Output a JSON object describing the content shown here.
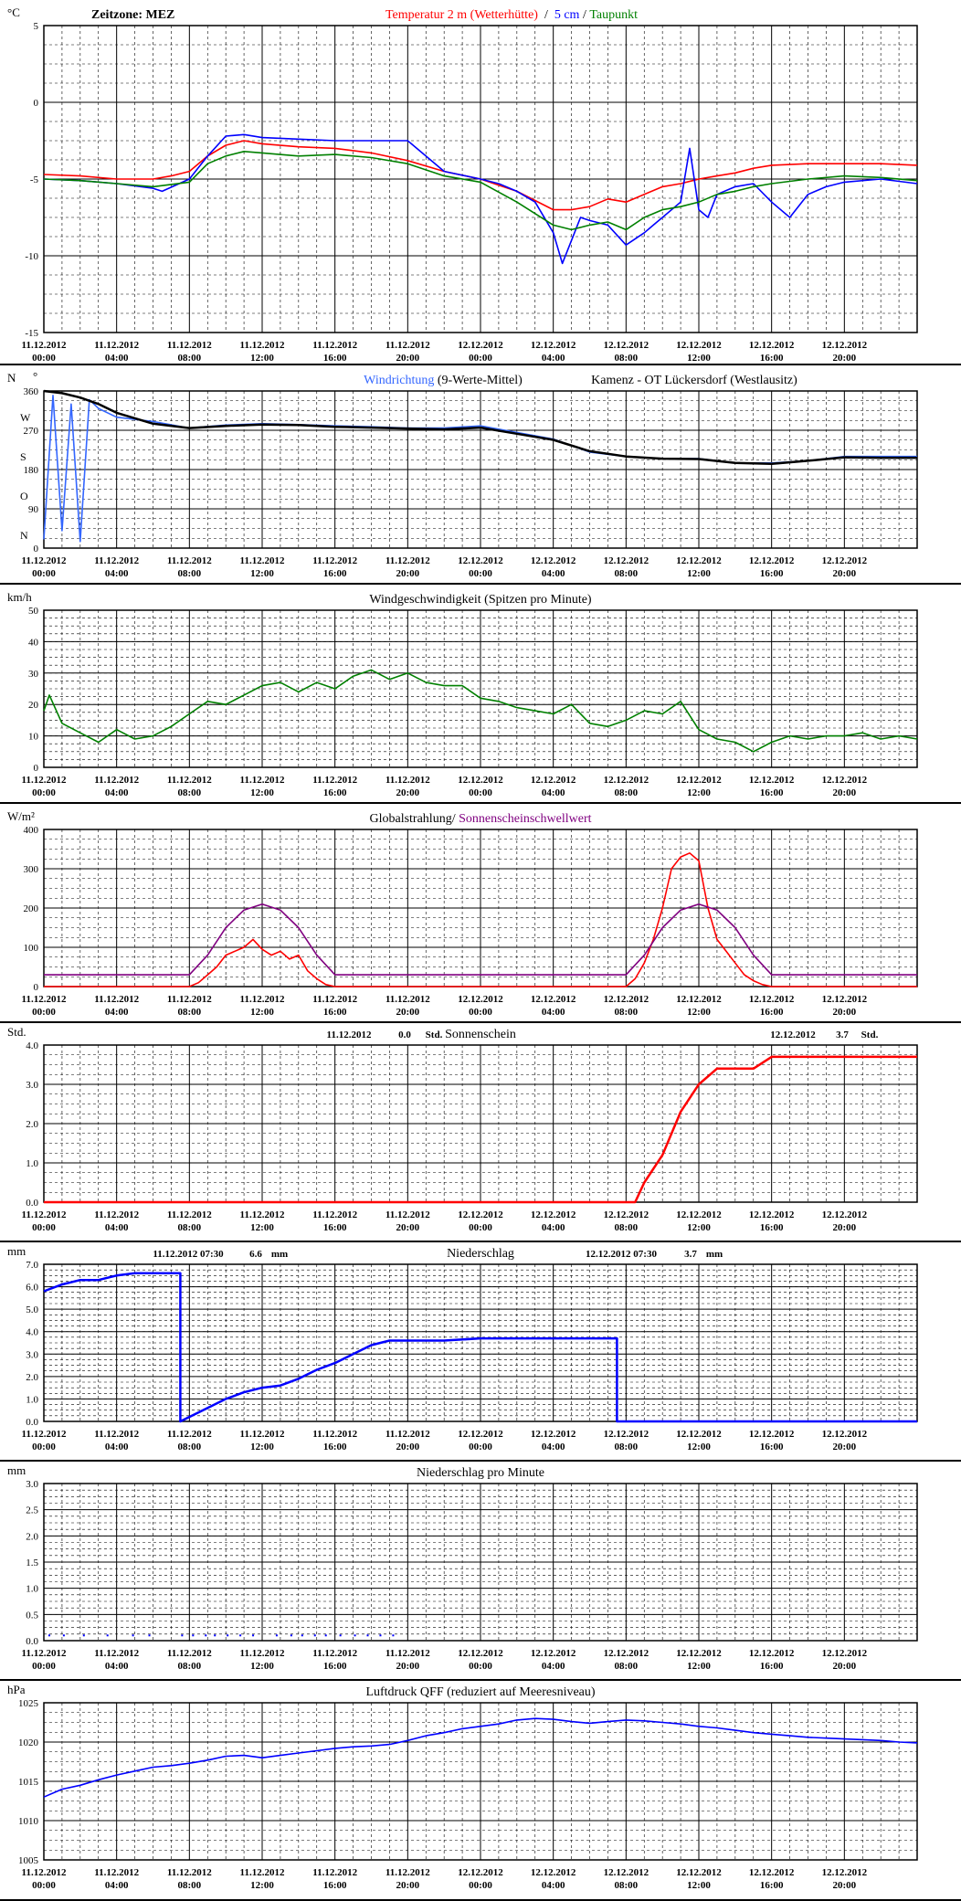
{
  "colors": {
    "temp2m": "#ff0000",
    "temp5cm": "#0000ff",
    "dewpoint": "#008000",
    "winddir_raw": "#3366ff",
    "winddir_avg": "#000000",
    "windspeed": "#008000",
    "radiation": "#ff0000",
    "sun_threshold": "#800080",
    "sunshine": "#ff0000",
    "precip": "#0000ff",
    "precip_minute": "#0000ff",
    "pressure": "#0000ff",
    "grid_major": "#000000",
    "grid_minor": "#000000"
  },
  "time_ticks": [
    "11.12.2012",
    "11.12.2012",
    "11.12.2012",
    "11.12.2012",
    "11.12.2012",
    "11.12.2012",
    "12.12.2012",
    "12.12.2012",
    "12.12.2012",
    "12.12.2012",
    "12.12.2012",
    "12.12.2012"
  ],
  "time_ticks_hour": [
    "00:00",
    "04:00",
    "08:00",
    "12:00",
    "16:00",
    "20:00",
    "00:00",
    "04:00",
    "08:00",
    "12:00",
    "16:00",
    "20:00"
  ],
  "chart_data": [
    {
      "id": "temp",
      "type": "line",
      "unit": "°C",
      "title_left": "Zeitzone: MEZ",
      "title_parts": [
        {
          "text": "Temperatur 2 m (Wetterhütte)",
          "color": "#ff0000"
        },
        {
          "text": "  /  ",
          "color": "#000000"
        },
        {
          "text": "5 cm",
          "color": "#0000ff"
        },
        {
          "text": " / ",
          "color": "#000000"
        },
        {
          "text": "Taupunkt",
          "color": "#008000"
        }
      ],
      "ylim": [
        -15,
        5
      ],
      "yticks": [
        5,
        0,
        -5,
        -10,
        -15
      ],
      "xlim": [
        0,
        48
      ],
      "series": [
        {
          "name": "Temperatur 2 m (Wetterhütte)",
          "color": "#ff0000",
          "x": [
            0,
            2,
            4,
            6,
            7,
            8,
            9,
            10,
            11,
            12,
            14,
            16,
            18,
            20,
            22,
            24,
            26,
            28,
            29,
            30,
            31,
            32,
            33,
            34,
            35,
            36,
            37,
            38,
            39,
            40,
            42,
            44,
            46,
            48
          ],
          "y": [
            -4.7,
            -4.8,
            -5.0,
            -5.0,
            -4.8,
            -4.5,
            -3.5,
            -2.8,
            -2.5,
            -2.7,
            -2.9,
            -3.0,
            -3.3,
            -3.8,
            -4.5,
            -5.0,
            -5.8,
            -7.0,
            -7.0,
            -6.8,
            -6.3,
            -6.5,
            -6.0,
            -5.5,
            -5.3,
            -5.0,
            -4.8,
            -4.6,
            -4.3,
            -4.1,
            -4.0,
            -4.0,
            -4.0,
            -4.1
          ]
        },
        {
          "name": "5 cm",
          "color": "#0000ff",
          "x": [
            0,
            2,
            4,
            6,
            6.5,
            8,
            9,
            10,
            11,
            12,
            14,
            16,
            18,
            20,
            22,
            24,
            25,
            26,
            27,
            28,
            28.5,
            29,
            29.5,
            30,
            31,
            32,
            33,
            33.5,
            34,
            35,
            35.5,
            36,
            36.5,
            37,
            38,
            39,
            40,
            41,
            42,
            43,
            44,
            46,
            48
          ],
          "y": [
            -5.0,
            -5.1,
            -5.3,
            -5.6,
            -5.8,
            -5.0,
            -3.5,
            -2.2,
            -2.1,
            -2.3,
            -2.4,
            -2.5,
            -2.5,
            -2.5,
            -4.5,
            -5.0,
            -5.3,
            -5.8,
            -6.5,
            -8.5,
            -10.5,
            -9.0,
            -7.5,
            -7.7,
            -8.0,
            -9.3,
            -8.5,
            -8.0,
            -7.5,
            -6.5,
            -3.0,
            -7.0,
            -7.5,
            -6.0,
            -5.5,
            -5.3,
            -6.5,
            -7.5,
            -6.0,
            -5.5,
            -5.2,
            -5.0,
            -5.3
          ]
        },
        {
          "name": "Taupunkt",
          "color": "#008000",
          "x": [
            0,
            2,
            4,
            6,
            8,
            9,
            10,
            11,
            12,
            14,
            16,
            18,
            20,
            22,
            24,
            26,
            28,
            29,
            30,
            31,
            32,
            33,
            34,
            35,
            36,
            37,
            38,
            39,
            40,
            42,
            44,
            46,
            48
          ],
          "y": [
            -5.0,
            -5.1,
            -5.3,
            -5.5,
            -5.2,
            -4.0,
            -3.5,
            -3.2,
            -3.3,
            -3.5,
            -3.4,
            -3.6,
            -4.0,
            -4.8,
            -5.2,
            -6.5,
            -8.0,
            -8.3,
            -8.0,
            -7.8,
            -8.3,
            -7.5,
            -7.0,
            -6.8,
            -6.5,
            -6.0,
            -5.8,
            -5.5,
            -5.3,
            -5.0,
            -4.8,
            -4.9,
            -5.1
          ]
        }
      ]
    },
    {
      "id": "winddir",
      "type": "line",
      "unit": "N",
      "unit2": "°",
      "title_parts": [
        {
          "text": "Windrichtung",
          "color": "#3366ff"
        },
        {
          "text": " (9-Werte-Mittel)",
          "color": "#000000"
        }
      ],
      "title_right": "Kamenz - OT Lückersdorf (Westlausitz)",
      "ylim": [
        0,
        360
      ],
      "yticks": [
        360,
        270,
        180,
        90,
        0
      ],
      "ylabels_compass": [
        "N",
        "W",
        "S",
        "O",
        "N"
      ],
      "xlim": [
        0,
        48
      ],
      "series": [
        {
          "name": "Windrichtung",
          "color": "#3366ff",
          "x": [
            0,
            0.5,
            1,
            1.5,
            2,
            2.5,
            3,
            4,
            6,
            8,
            10,
            12,
            14,
            16,
            18,
            20,
            22,
            24,
            26,
            28,
            30,
            32,
            34,
            36,
            38,
            40,
            42,
            44,
            46,
            48
          ],
          "y": [
            20,
            350,
            40,
            330,
            15,
            340,
            320,
            300,
            290,
            275,
            282,
            285,
            283,
            280,
            278,
            275,
            275,
            280,
            265,
            250,
            220,
            210,
            205,
            205,
            195,
            195,
            200,
            210,
            210,
            210
          ]
        },
        {
          "name": "9-Werte-Mittel",
          "color": "#000000",
          "x": [
            0,
            1,
            2,
            3,
            4,
            6,
            8,
            10,
            12,
            14,
            16,
            18,
            20,
            22,
            24,
            26,
            28,
            30,
            32,
            34,
            36,
            38,
            40,
            42,
            44,
            46,
            48
          ],
          "y": [
            360,
            355,
            345,
            330,
            310,
            285,
            275,
            280,
            283,
            282,
            278,
            276,
            274,
            272,
            276,
            262,
            248,
            222,
            210,
            205,
            204,
            195,
            193,
            200,
            208,
            207,
            207
          ]
        }
      ]
    },
    {
      "id": "windspeed",
      "type": "line",
      "unit": "km/h",
      "title": "Windgeschwindigkeit (Spitzen pro Minute)",
      "ylim": [
        0,
        50
      ],
      "yticks": [
        50,
        40,
        30,
        20,
        10,
        0
      ],
      "xlim": [
        0,
        48
      ],
      "series": [
        {
          "name": "Windgeschwindigkeit",
          "color": "#008000",
          "x": [
            0,
            0.3,
            1,
            2,
            3,
            4,
            5,
            6,
            7,
            8,
            9,
            10,
            11,
            12,
            13,
            14,
            15,
            16,
            17,
            18,
            19,
            20,
            21,
            22,
            23,
            24,
            25,
            26,
            27,
            28,
            29,
            30,
            31,
            32,
            33,
            34,
            35,
            36,
            37,
            38,
            39,
            40,
            41,
            42,
            43,
            44,
            45,
            46,
            47,
            48
          ],
          "y": [
            18,
            23,
            14,
            11,
            8,
            12,
            9,
            10,
            13,
            17,
            21,
            20,
            23,
            26,
            27,
            24,
            27,
            25,
            29,
            31,
            28,
            30,
            27,
            26,
            26,
            22,
            21,
            19,
            18,
            17,
            20,
            14,
            13,
            15,
            18,
            17,
            21,
            12,
            9,
            8,
            5,
            8,
            10,
            9,
            10,
            10,
            11,
            9,
            10,
            9
          ]
        }
      ]
    },
    {
      "id": "radiation",
      "type": "line",
      "unit": "W/m²",
      "title_parts": [
        {
          "text": "Globalstrahlung/ ",
          "color": "#000000"
        },
        {
          "text": "Sonnenscheinschwellwert",
          "color": "#800080"
        }
      ],
      "ylim": [
        0,
        400
      ],
      "yticks": [
        400,
        300,
        200,
        100,
        0
      ],
      "xlim": [
        0,
        48
      ],
      "series": [
        {
          "name": "Globalstrahlung",
          "color": "#ff0000",
          "x": [
            0,
            8,
            8.5,
            9,
            9.5,
            10,
            10.5,
            11,
            11.5,
            12,
            12.5,
            13,
            13.5,
            14,
            14.5,
            15,
            15.5,
            16,
            32,
            32.5,
            33,
            33.5,
            34,
            34.5,
            35,
            35.5,
            36,
            36.5,
            37,
            37.5,
            38,
            38.5,
            39,
            39.5,
            40,
            48
          ],
          "y": [
            0,
            0,
            10,
            30,
            50,
            80,
            90,
            100,
            120,
            95,
            80,
            90,
            70,
            80,
            40,
            20,
            5,
            0,
            0,
            20,
            60,
            120,
            200,
            300,
            330,
            340,
            320,
            200,
            120,
            90,
            60,
            30,
            15,
            5,
            0,
            0
          ]
        },
        {
          "name": "Sonnenscheinschwellwert",
          "color": "#800080",
          "x": [
            0,
            7.5,
            8,
            9,
            10,
            11,
            12,
            13,
            14,
            15,
            16,
            16.5,
            31.5,
            32,
            33,
            34,
            35,
            36,
            37,
            38,
            39,
            40,
            40.5,
            48
          ],
          "y": [
            30,
            30,
            30,
            80,
            150,
            195,
            210,
            195,
            150,
            80,
            30,
            30,
            30,
            30,
            80,
            150,
            195,
            210,
            195,
            150,
            80,
            30,
            30,
            30
          ]
        }
      ]
    },
    {
      "id": "sunshine",
      "type": "line",
      "unit": "Std.",
      "title": "Sonnenschein",
      "label_day1": "11.12.2012",
      "value_day1": "0.0",
      "unit_day1": "Std.",
      "label_day2": "12.12.2012",
      "value_day2": "3.7",
      "unit_day2": "Std.",
      "ylim": [
        0,
        4
      ],
      "yticks": [
        "4.0",
        "3.0",
        "2.0",
        "1.0",
        "0.0"
      ],
      "xlim": [
        0,
        48
      ],
      "series": [
        {
          "name": "Sonnenschein",
          "color": "#ff0000",
          "x": [
            0,
            32.5,
            33,
            34,
            35,
            36,
            37,
            38,
            39,
            40,
            41,
            48
          ],
          "y": [
            0,
            0,
            0.5,
            1.2,
            2.3,
            3.0,
            3.4,
            3.4,
            3.4,
            3.7,
            3.7,
            3.7
          ]
        }
      ]
    },
    {
      "id": "precip",
      "type": "line",
      "unit": "mm",
      "title": "Niederschlag",
      "label_day1": "11.12.2012 07:30",
      "value_day1": "6.6",
      "unit_day1": "mm",
      "label_day2": "12.12.2012 07:30",
      "value_day2": "3.7",
      "unit_day2": "mm",
      "ylim": [
        0,
        7
      ],
      "yticks": [
        "7.0",
        "6.0",
        "5.0",
        "4.0",
        "3.0",
        "2.0",
        "1.0",
        "0.0"
      ],
      "xlim": [
        0,
        48
      ],
      "series": [
        {
          "name": "Niederschlag",
          "color": "#0000ff",
          "x": [
            0,
            1,
            2,
            3,
            4,
            5,
            6,
            7,
            7.5,
            7.5,
            8,
            9,
            10,
            11,
            12,
            13,
            14,
            15,
            16,
            17,
            18,
            19,
            20,
            22,
            24,
            26,
            28,
            31.5,
            31.5,
            48
          ],
          "y": [
            5.8,
            6.1,
            6.3,
            6.3,
            6.5,
            6.6,
            6.6,
            6.6,
            6.6,
            0.0,
            0.2,
            0.6,
            1.0,
            1.3,
            1.5,
            1.6,
            1.9,
            2.3,
            2.6,
            3.0,
            3.4,
            3.6,
            3.6,
            3.6,
            3.7,
            3.7,
            3.7,
            3.7,
            0.0,
            0.0
          ]
        }
      ]
    },
    {
      "id": "precip_min",
      "type": "scatter",
      "unit": "mm",
      "title": "Niederschlag pro Minute",
      "ylim": [
        0,
        3
      ],
      "yticks": [
        "3.0",
        "2.5",
        "2.0",
        "1.5",
        "1.0",
        "0.5",
        "0.0"
      ],
      "xlim": [
        0,
        48
      ],
      "series": [
        {
          "name": "Niederschlag pro Minute",
          "color": "#0000ff",
          "x": [
            0.3,
            1.1,
            2.2,
            3.5,
            4.9,
            5.8,
            7.6,
            8.2,
            8.9,
            9.4,
            10.1,
            10.8,
            11.5,
            12.8,
            13.6,
            14.2,
            14.9,
            15.5,
            16.3,
            17.1,
            17.8,
            18.5,
            19.2
          ],
          "y": [
            0.1,
            0.1,
            0.1,
            0.1,
            0.1,
            0.1,
            0.1,
            0.1,
            0.1,
            0.1,
            0.1,
            0.1,
            0.1,
            0.1,
            0.1,
            0.1,
            0.1,
            0.1,
            0.1,
            0.1,
            0.1,
            0.1,
            0.1
          ]
        }
      ]
    },
    {
      "id": "pressure",
      "type": "line",
      "unit": "hPa",
      "title": "Luftdruck QFF (reduziert auf Meeresniveau)",
      "ylim": [
        1005,
        1025
      ],
      "yticks": [
        1025,
        1020,
        1015,
        1010,
        1005
      ],
      "xlim": [
        0,
        48
      ],
      "series": [
        {
          "name": "Luftdruck QFF",
          "color": "#0000ff",
          "x": [
            0,
            1,
            2,
            3,
            4,
            5,
            6,
            7,
            8,
            9,
            10,
            11,
            12,
            13,
            14,
            15,
            16,
            17,
            18,
            19,
            20,
            21,
            22,
            23,
            24,
            25,
            26,
            27,
            28,
            29,
            30,
            31,
            32,
            33,
            34,
            35,
            36,
            37,
            38,
            39,
            40,
            41,
            42,
            43,
            44,
            45,
            46,
            47,
            48
          ],
          "y": [
            1013.0,
            1014.0,
            1014.5,
            1015.2,
            1015.8,
            1016.3,
            1016.8,
            1017.0,
            1017.3,
            1017.7,
            1018.2,
            1018.3,
            1018.0,
            1018.3,
            1018.6,
            1018.9,
            1019.2,
            1019.4,
            1019.5,
            1019.7,
            1020.2,
            1020.8,
            1021.2,
            1021.7,
            1022.0,
            1022.3,
            1022.8,
            1023.0,
            1022.9,
            1022.6,
            1022.4,
            1022.6,
            1022.8,
            1022.7,
            1022.5,
            1022.3,
            1022.0,
            1021.8,
            1021.5,
            1021.2,
            1021.0,
            1020.8,
            1020.6,
            1020.5,
            1020.4,
            1020.3,
            1020.2,
            1020.0,
            1019.9
          ]
        }
      ]
    }
  ]
}
